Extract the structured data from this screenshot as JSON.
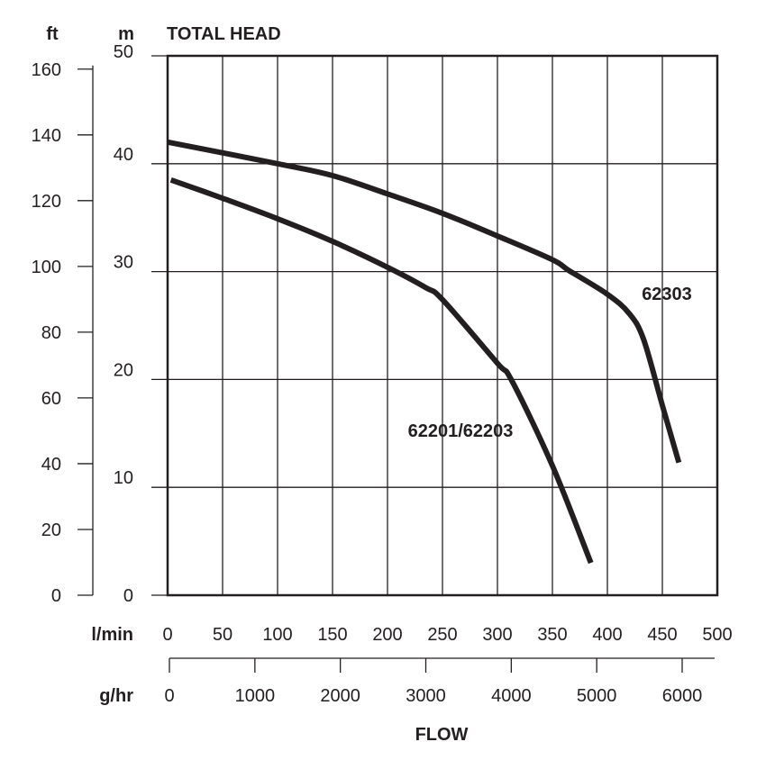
{
  "chart_data": {
    "type": "line",
    "title": "TOTAL HEAD",
    "xlabel": "FLOW",
    "y_units": {
      "left": "ft",
      "right": "m"
    },
    "x_units": {
      "primary": "l/min",
      "secondary": "g/hr"
    },
    "xlim": [
      0,
      500
    ],
    "ylim_m": [
      0,
      50
    ],
    "ylim_ft": [
      0,
      160
    ],
    "x_secondary_lim": [
      0,
      6000
    ],
    "grid": true,
    "x_ticks": [
      0,
      50,
      100,
      150,
      200,
      250,
      300,
      350,
      400,
      450,
      500
    ],
    "x_secondary_ticks": [
      0,
      1000,
      2000,
      3000,
      4000,
      5000,
      6000
    ],
    "y_ticks_m": [
      0,
      10,
      20,
      30,
      40,
      50
    ],
    "y_ticks_ft": [
      0,
      20,
      40,
      60,
      80,
      100,
      120,
      140,
      160
    ],
    "series": [
      {
        "name": "62303",
        "x": [
          0,
          100,
          150,
          200,
          250,
          300,
          350,
          365,
          400,
          420,
          433,
          450,
          465
        ],
        "y": [
          42.0,
          40.0,
          38.9,
          37.2,
          35.4,
          33.3,
          31.1,
          30.1,
          27.9,
          26.1,
          23.7,
          17.6,
          12.3
        ]
      },
      {
        "name": "62201/62203",
        "x": [
          3,
          50,
          100,
          150,
          200,
          235,
          250,
          300,
          313,
          350,
          385
        ],
        "y": [
          38.5,
          36.8,
          34.9,
          32.8,
          30.4,
          28.5,
          27.4,
          21.5,
          19.9,
          12.0,
          3.0
        ]
      }
    ],
    "colors": {
      "line": "#231f20",
      "grid": "#231f20"
    }
  }
}
